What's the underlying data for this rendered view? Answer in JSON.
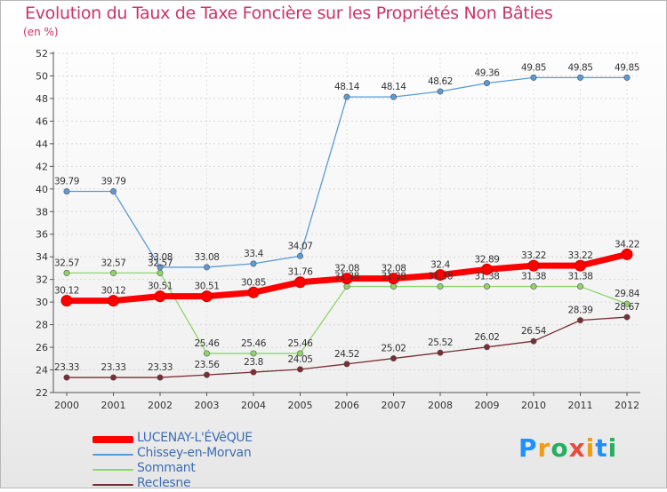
{
  "title": "Evolution du Taux de Taxe Foncière sur les Propriétés Non Bâties",
  "unit": "(en %)",
  "brand": [
    "P",
    "r",
    "o",
    "x",
    "i",
    "t",
    "i"
  ],
  "brand_colors": [
    "#1e90ff",
    "#f39c12",
    "#27ae60",
    "#e74c3c",
    "#f39c12",
    "#1e90ff",
    "#27ae60"
  ],
  "chart_data": {
    "type": "line",
    "title": "Evolution du Taux de Taxe Foncière sur les Propriétés Non Bâties",
    "ylabel": "(en %)",
    "x": [
      "2000",
      "2001",
      "2002",
      "2003",
      "2004",
      "2005",
      "2006",
      "2007",
      "2008",
      "2009",
      "2010",
      "2011",
      "2012"
    ],
    "yticks": [
      22,
      24,
      26,
      28,
      30,
      32,
      34,
      36,
      38,
      40,
      42,
      44,
      46,
      48,
      50,
      52
    ],
    "ylim": [
      22,
      52
    ],
    "series": [
      {
        "name": "LUCENAY-L'ÉVêQUE",
        "color": "#ff0000",
        "width": "thick",
        "values": [
          30.12,
          30.12,
          30.51,
          30.51,
          30.85,
          31.76,
          32.08,
          32.08,
          32.4,
          32.89,
          33.22,
          33.22,
          34.22
        ],
        "labels": [
          "30.12",
          "30.12",
          "30.51",
          "30.51",
          "30.85",
          "31.76",
          "32.08",
          "32.08",
          "32.4",
          "32.89",
          "33.22",
          "33.22",
          "34.22"
        ]
      },
      {
        "name": "Chissey-en-Morvan",
        "color": "#5b9bd5",
        "width": "thin",
        "values": [
          39.79,
          39.79,
          33.08,
          33.08,
          33.4,
          34.07,
          48.14,
          48.14,
          48.62,
          49.36,
          49.85,
          49.85,
          49.85
        ],
        "labels": [
          "39.79",
          "39.79",
          "33.08",
          "33.08",
          "33.4",
          "34.07",
          "48.14",
          "48.14",
          "48.62",
          "49.36",
          "49.85",
          "49.85",
          "49.85"
        ]
      },
      {
        "name": "Sommant",
        "color": "#8fd46a",
        "width": "thin",
        "values": [
          32.57,
          32.57,
          32.57,
          25.46,
          25.46,
          25.46,
          31.38,
          31.38,
          31.38,
          31.38,
          31.38,
          31.38,
          29.84
        ],
        "labels": [
          "32.57",
          "32.57",
          "32.57",
          "25.46",
          "25.46",
          "25.46",
          "31.38",
          "31.38",
          "31.38",
          "31.38",
          "31.38",
          "31.38",
          "29.84"
        ]
      },
      {
        "name": "Reclesne",
        "color": "#7a2e33",
        "width": "thin",
        "values": [
          23.33,
          23.33,
          23.33,
          23.56,
          23.8,
          24.05,
          24.52,
          25.02,
          25.52,
          26.02,
          26.54,
          28.39,
          28.67
        ],
        "labels": [
          "23.33",
          "23.33",
          "23.33",
          "23.56",
          "23.8",
          "24.05",
          "24.52",
          "25.02",
          "25.52",
          "26.02",
          "26.54",
          "28.39",
          "28.67"
        ]
      }
    ]
  }
}
